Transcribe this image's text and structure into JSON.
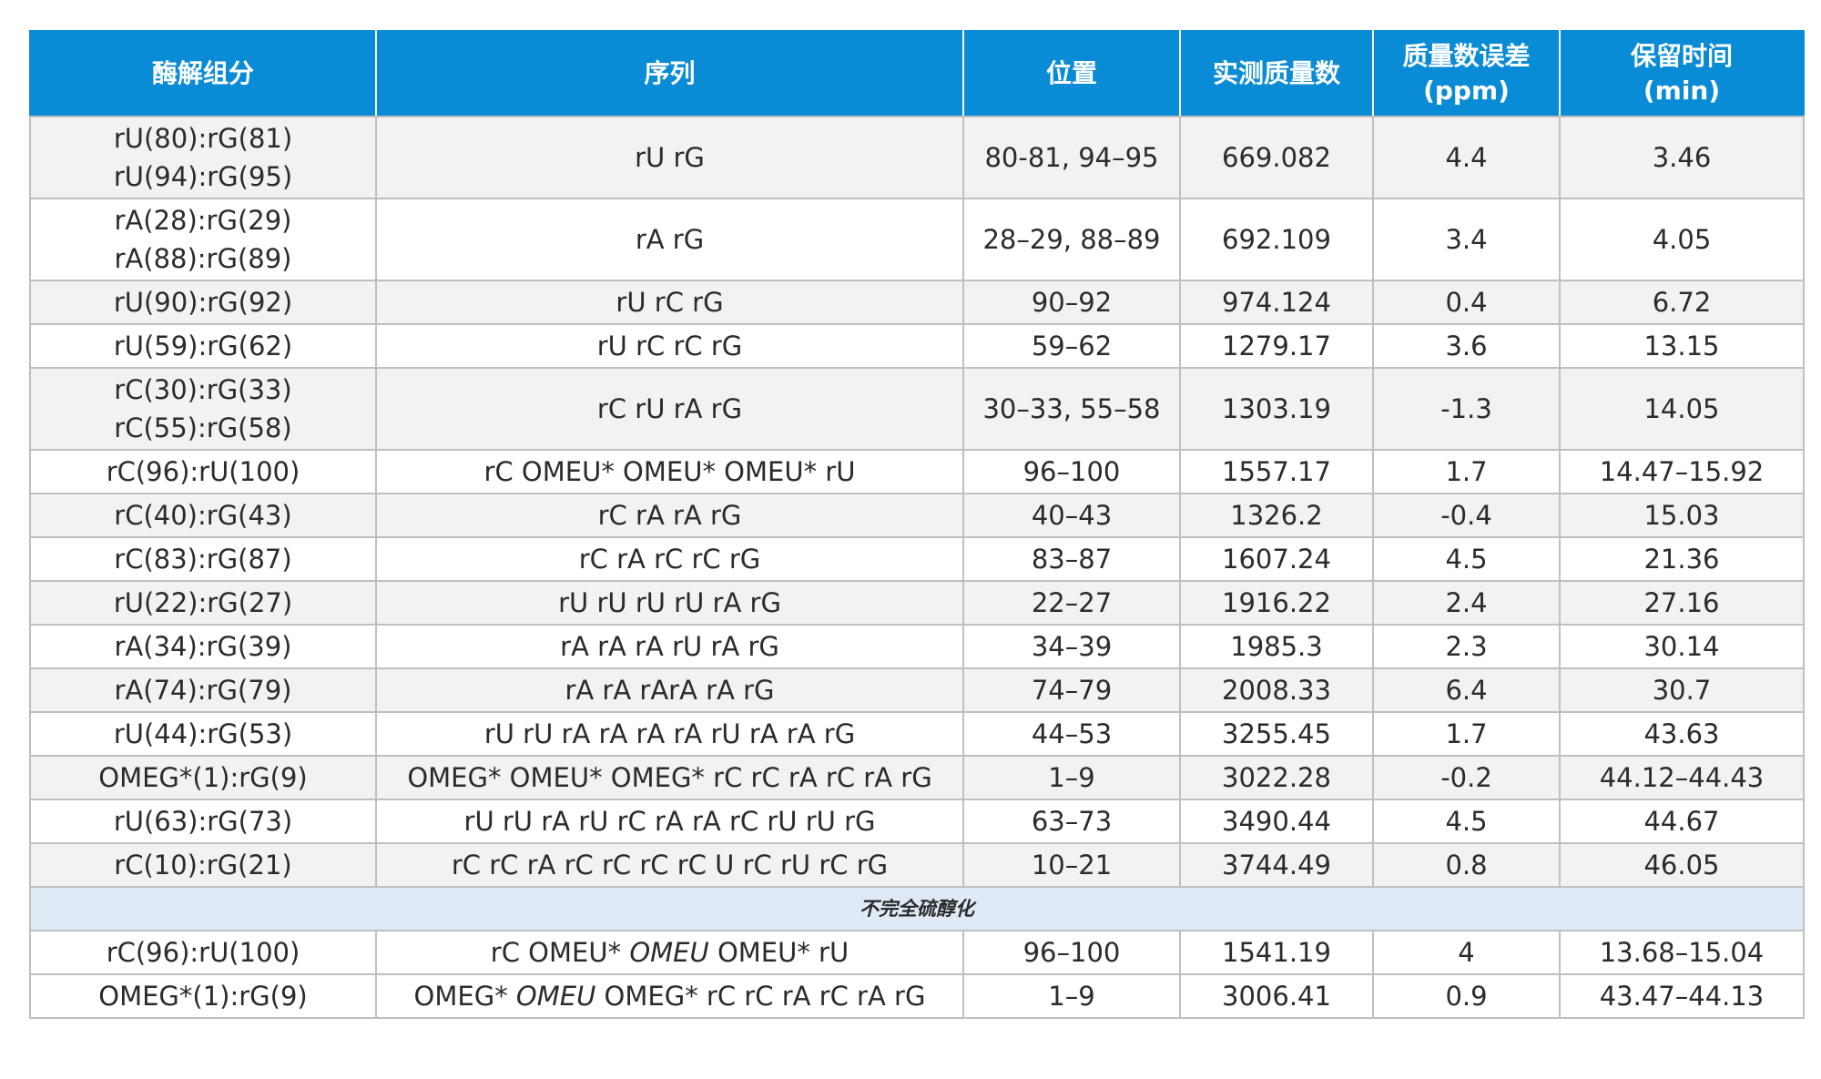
{
  "headers": {
    "component": "酶解组分",
    "sequence": "序列",
    "position": "位置",
    "mass": "实测质量数",
    "error_line1": "质量数误差",
    "error_line2": "(ppm)",
    "rt_line1": "保留时间",
    "rt_line2": "(min)"
  },
  "rows": [
    {
      "comp": [
        "rU(80):rG(81)",
        "rU(94):rG(95)"
      ],
      "seq": "rU rG",
      "pos": "80-81, 94–95",
      "mass": "669.082",
      "err": "4.4",
      "rt": "3.46"
    },
    {
      "comp": [
        "rA(28):rG(29)",
        "rA(88):rG(89)"
      ],
      "seq": "rA rG",
      "pos": "28–29, 88–89",
      "mass": "692.109",
      "err": "3.4",
      "rt": "4.05"
    },
    {
      "comp": [
        "rU(90):rG(92)"
      ],
      "seq": "rU rC rG",
      "pos": "90–92",
      "mass": "974.124",
      "err": "0.4",
      "rt": "6.72"
    },
    {
      "comp": [
        "rU(59):rG(62)"
      ],
      "seq": "rU rC rC rG",
      "pos": "59–62",
      "mass": "1279.17",
      "err": "3.6",
      "rt": "13.15"
    },
    {
      "comp": [
        "rC(30):rG(33)",
        "rC(55):rG(58)"
      ],
      "seq": "rC rU rA rG",
      "pos": "30–33, 55–58",
      "mass": "1303.19",
      "err": "-1.3",
      "rt": "14.05"
    },
    {
      "comp": [
        "rC(96):rU(100)"
      ],
      "seq": "rC OMEU* OMEU* OMEU* rU",
      "pos": "96–100",
      "mass": "1557.17",
      "err": "1.7",
      "rt": "14.47–15.92"
    },
    {
      "comp": [
        "rC(40):rG(43)"
      ],
      "seq": "rC rA rA rG",
      "pos": "40–43",
      "mass": "1326.2",
      "err": "-0.4",
      "rt": "15.03"
    },
    {
      "comp": [
        "rC(83):rG(87)"
      ],
      "seq": "rC rA rC rC rG",
      "pos": "83–87",
      "mass": "1607.24",
      "err": "4.5",
      "rt": "21.36"
    },
    {
      "comp": [
        "rU(22):rG(27)"
      ],
      "seq": "rU rU rU rU rA rG",
      "pos": "22–27",
      "mass": "1916.22",
      "err": "2.4",
      "rt": "27.16"
    },
    {
      "comp": [
        "rA(34):rG(39)"
      ],
      "seq": "rA rA rA rU rA rG",
      "pos": "34–39",
      "mass": "1985.3",
      "err": "2.3",
      "rt": "30.14"
    },
    {
      "comp": [
        "rA(74):rG(79)"
      ],
      "seq": "rA rA rArA rA rG",
      "pos": "74–79",
      "mass": "2008.33",
      "err": "6.4",
      "rt": "30.7"
    },
    {
      "comp": [
        "rU(44):rG(53)"
      ],
      "seq": "rU rU rA rA rA rA rU rA rA rG",
      "pos": "44–53",
      "mass": "3255.45",
      "err": "1.7",
      "rt": "43.63"
    },
    {
      "comp": [
        "OMEG*(1):rG(9)"
      ],
      "seq": "OMEG* OMEU* OMEG* rC rC rA rC rA rG",
      "pos": "1–9",
      "mass": "3022.28",
      "err": "-0.2",
      "rt": "44.12–44.43"
    },
    {
      "comp": [
        "rU(63):rG(73)"
      ],
      "seq": "rU rU rA rU rC rA rA rC rU rU rG",
      "pos": "63–73",
      "mass": "3490.44",
      "err": "4.5",
      "rt": "44.67"
    },
    {
      "comp": [
        "rC(10):rG(21)"
      ],
      "seq": "rC rC rA rC rC rC rC U rC rU rC rG",
      "pos": "10–21",
      "mass": "3744.49",
      "err": "0.8",
      "rt": "46.05"
    }
  ],
  "section_label": "不完全硫醇化",
  "section_rows": [
    {
      "comp": "rC(96):rU(100)",
      "seq_pre": "rC OMEU*",
      "seq_ital": "OMEU",
      "seq_post": "OMEU* rU",
      "pos": "96–100",
      "mass": "1541.19",
      "err": "4",
      "rt": "13.68–15.04"
    },
    {
      "comp": "OMEG*(1):rG(9)",
      "seq_pre": "OMEG*",
      "seq_ital": "OMEU",
      "seq_post": "OMEG* rC rC rA rC rA rG",
      "pos": "1–9",
      "mass": "3006.41",
      "err": "0.9",
      "rt": "43.47–44.13"
    }
  ]
}
